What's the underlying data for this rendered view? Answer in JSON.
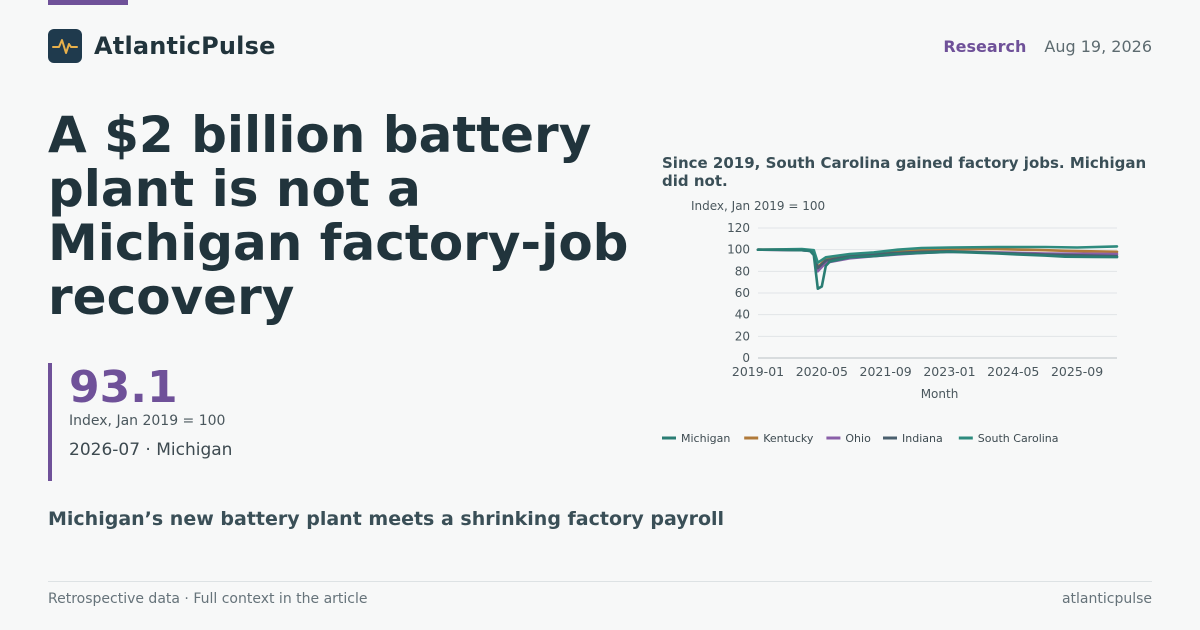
{
  "brand": {
    "name": "AtlanticPulse",
    "logo_icon": "pulse-icon"
  },
  "header": {
    "section": "Research",
    "date": "Aug 19, 2026"
  },
  "headline": "A $2 billion battery plant is not a Michigan factory-job recovery",
  "stat": {
    "value": "93.1",
    "label": "Index, Jan 2019 = 100",
    "context": "2026-07 · Michigan"
  },
  "subhead": "Michigan’s new battery plant meets a shrinking factory payroll",
  "footer": {
    "left": "Retrospective data · Full context in the article",
    "right": "atlanticpulse"
  },
  "colors": {
    "accent": "#6f5199",
    "text": "#21343c",
    "logo_bg": "#1f3a4d",
    "logo_line": "#e8b04b"
  },
  "chart_data": {
    "type": "line",
    "title": "Since 2019, South Carolina gained factory jobs. Michigan did not.",
    "ylabel": "Index, Jan 2019 = 100",
    "xlabel": "Month",
    "ylim": [
      0,
      120
    ],
    "yticks": [
      0,
      20,
      40,
      60,
      80,
      100,
      120
    ],
    "xticks": [
      "2019-01",
      "2020-05",
      "2021-09",
      "2023-01",
      "2024-05",
      "2025-09"
    ],
    "x_start": "2019-01",
    "x_end": "2026-07",
    "grid": true,
    "legend_position": "bottom",
    "series": [
      {
        "name": "Michigan",
        "color": "#2a7d73",
        "points": [
          [
            "2019-01",
            100
          ],
          [
            "2019-06",
            100
          ],
          [
            "2019-12",
            99.5
          ],
          [
            "2020-02",
            99
          ],
          [
            "2020-03",
            95
          ],
          [
            "2020-04",
            64
          ],
          [
            "2020-05",
            66
          ],
          [
            "2020-06",
            85
          ],
          [
            "2020-07",
            89
          ],
          [
            "2020-12",
            93
          ],
          [
            "2021-06",
            94
          ],
          [
            "2021-12",
            96
          ],
          [
            "2022-06",
            97
          ],
          [
            "2023-01",
            98
          ],
          [
            "2023-06",
            97.5
          ],
          [
            "2024-01",
            96.5
          ],
          [
            "2024-06",
            95.5
          ],
          [
            "2025-01",
            94.5
          ],
          [
            "2025-06",
            93.5
          ],
          [
            "2026-01",
            93.3
          ],
          [
            "2026-07",
            93.1
          ]
        ]
      },
      {
        "name": "Kentucky",
        "color": "#b07a3a",
        "points": [
          [
            "2019-01",
            100
          ],
          [
            "2019-12",
            100
          ],
          [
            "2020-03",
            99
          ],
          [
            "2020-04",
            84
          ],
          [
            "2020-06",
            91
          ],
          [
            "2020-12",
            95
          ],
          [
            "2021-06",
            96
          ],
          [
            "2021-12",
            98
          ],
          [
            "2022-06",
            99.5
          ],
          [
            "2023-01",
            100.5
          ],
          [
            "2024-01",
            100.5
          ],
          [
            "2025-01",
            99.5
          ],
          [
            "2025-06",
            99
          ],
          [
            "2026-07",
            98
          ]
        ]
      },
      {
        "name": "Ohio",
        "color": "#8a5fa8",
        "points": [
          [
            "2019-01",
            100
          ],
          [
            "2019-12",
            99.5
          ],
          [
            "2020-03",
            98.5
          ],
          [
            "2020-04",
            80
          ],
          [
            "2020-06",
            88
          ],
          [
            "2020-12",
            92
          ],
          [
            "2021-06",
            94
          ],
          [
            "2021-12",
            95.5
          ],
          [
            "2022-06",
            97
          ],
          [
            "2023-01",
            98
          ],
          [
            "2024-01",
            97.5
          ],
          [
            "2025-01",
            96.5
          ],
          [
            "2026-07",
            96
          ]
        ]
      },
      {
        "name": "Indiana",
        "color": "#4a5f6e",
        "points": [
          [
            "2019-01",
            100
          ],
          [
            "2019-12",
            99.5
          ],
          [
            "2020-03",
            98.5
          ],
          [
            "2020-04",
            83
          ],
          [
            "2020-06",
            90
          ],
          [
            "2020-12",
            94
          ],
          [
            "2021-06",
            95.5
          ],
          [
            "2021-12",
            97
          ],
          [
            "2022-06",
            98
          ],
          [
            "2023-01",
            98.5
          ],
          [
            "2024-01",
            97
          ],
          [
            "2025-01",
            95.5
          ],
          [
            "2026-07",
            94
          ]
        ]
      },
      {
        "name": "South Carolina",
        "color": "#2e8b7e",
        "points": [
          [
            "2019-01",
            100
          ],
          [
            "2019-12",
            100.5
          ],
          [
            "2020-03",
            99.5
          ],
          [
            "2020-04",
            88
          ],
          [
            "2020-06",
            93
          ],
          [
            "2020-12",
            96
          ],
          [
            "2021-06",
            97.5
          ],
          [
            "2021-12",
            100
          ],
          [
            "2022-06",
            101.5
          ],
          [
            "2023-01",
            102
          ],
          [
            "2024-01",
            102.5
          ],
          [
            "2025-01",
            102.5
          ],
          [
            "2025-09",
            102
          ],
          [
            "2026-07",
            103
          ]
        ]
      }
    ]
  }
}
